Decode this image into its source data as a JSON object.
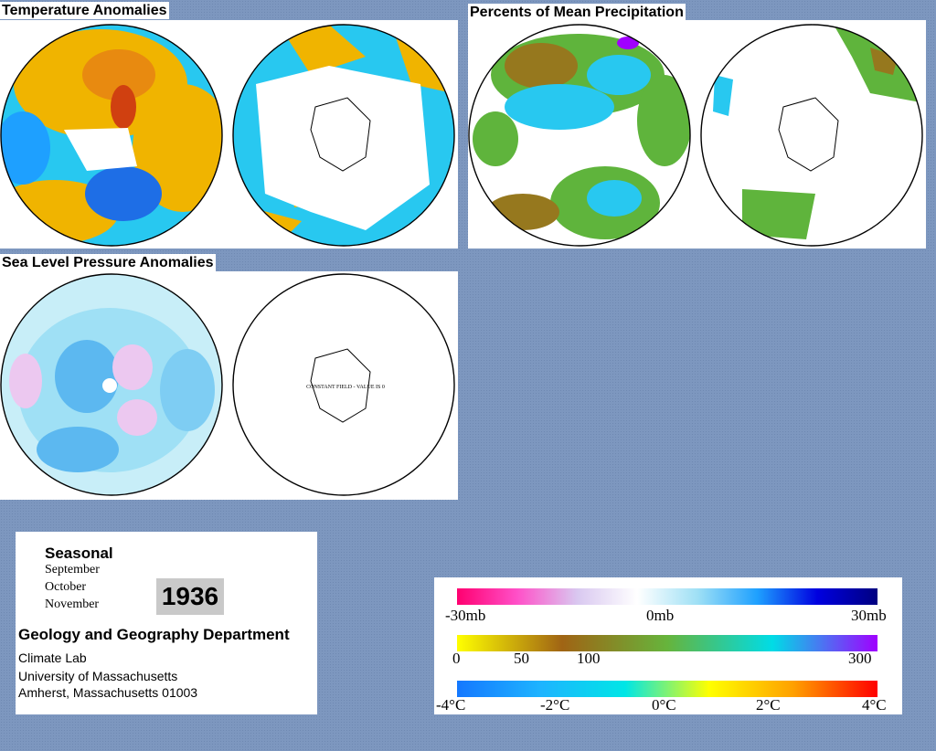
{
  "panels": {
    "temperature": {
      "title": "Temperature Anomalies"
    },
    "precipitation": {
      "title": "Percents of Mean Precipitation"
    },
    "pressure": {
      "title": "Sea Level Pressure Anomalies",
      "constant_field_note": "CONSTANT FIELD - VALUE IS 0"
    }
  },
  "info": {
    "season_label": "Seasonal",
    "months": [
      "September",
      "October",
      "November"
    ],
    "year": "1936",
    "department": "Geology and Geography Department",
    "address_lines": [
      "Climate Lab",
      "University of Massachusetts",
      "Amherst, Massachusetts 01003"
    ]
  },
  "legend": {
    "pressure_scale": {
      "labels": [
        "-30mb",
        "0mb",
        "30mb"
      ],
      "colors": [
        "#ff0070",
        "#ff50c8",
        "#d9c8f0",
        "#ffffff",
        "#9fe0f5",
        "#1ea0ff",
        "#0000e0",
        "#000080"
      ]
    },
    "precip_scale": {
      "labels": [
        "0",
        "50",
        "100",
        "300"
      ],
      "colors": [
        "#ffff00",
        "#a06414",
        "#66b43c",
        "#00dce6",
        "#a000ff"
      ]
    },
    "temp_scale": {
      "labels": [
        "-4°C",
        "-2°C",
        "0°C",
        "2°C",
        "4°C"
      ],
      "colors": [
        "#1478ff",
        "#1eb4ff",
        "#00e6e6",
        "#ffff00",
        "#ffa000",
        "#ff0000"
      ]
    }
  },
  "colors": {
    "background": "#7d97bf",
    "warm": "#f0b400",
    "hot": "#e05010",
    "cool": "#28c8f0",
    "cold": "#1e6ee6",
    "wet": "#5fb43c",
    "dry": "#96781e"
  }
}
